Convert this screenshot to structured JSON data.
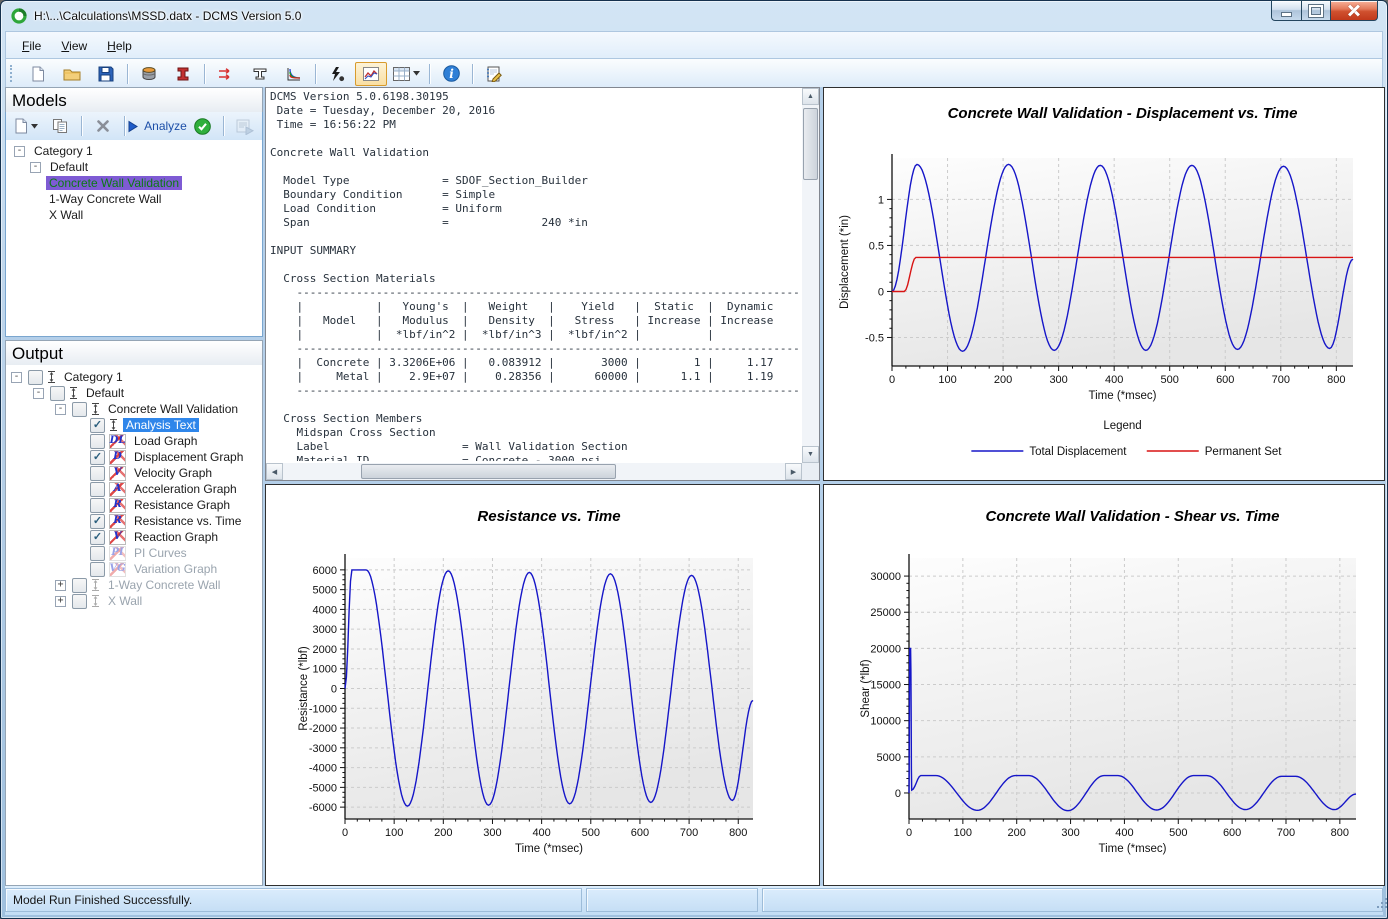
{
  "window": {
    "title": "H:\\...\\Calculations\\MSSD.datx  -  DCMS Version 5.0",
    "controls": [
      "minimize",
      "maximize",
      "close"
    ]
  },
  "menu": {
    "items": [
      "File",
      "View",
      "Help"
    ]
  },
  "toolbar": {
    "buttons": [
      {
        "name": "new-file-button",
        "icon": "page"
      },
      {
        "name": "open-file-button",
        "icon": "folder"
      },
      {
        "name": "save-file-button",
        "icon": "save"
      },
      {
        "sep": true
      },
      {
        "name": "section-builder-button",
        "icon": "drum"
      },
      {
        "name": "beam-designer-button",
        "icon": "ibeam"
      },
      {
        "sep": true
      },
      {
        "name": "loads-button",
        "icon": "loads"
      },
      {
        "name": "section-tool-button",
        "icon": "tsec"
      },
      {
        "name": "pi-curves-button",
        "icon": "pic"
      },
      {
        "sep": true
      },
      {
        "name": "run-analysis-button",
        "icon": "bolt"
      },
      {
        "name": "charts-view-button",
        "icon": "chart",
        "state": "active"
      },
      {
        "name": "table-view-button",
        "icon": "table",
        "caret": true
      },
      {
        "sep": true
      },
      {
        "name": "about-button",
        "icon": "info"
      },
      {
        "sep": true
      },
      {
        "name": "report-button",
        "icon": "report"
      }
    ]
  },
  "models": {
    "header": "Models",
    "selection_bg": "#7e5bd4",
    "selection_fg": "#0c7a14",
    "toolbar": {
      "buttons": [
        {
          "name": "new-model-button",
          "icon": "page",
          "caret": true
        },
        {
          "name": "copy-model-button",
          "icon": "copy"
        },
        {
          "sep": true
        },
        {
          "name": "delete-model-button",
          "icon": "xmark"
        },
        {
          "sep": true
        },
        {
          "name": "analyze-button",
          "icon": "play",
          "label": "Analyze"
        },
        {
          "name": "analyze-status-icon",
          "icon": "checkcircle"
        },
        {
          "sep": true
        },
        {
          "name": "batch-run-button",
          "icon": "runlog",
          "disabled": true
        }
      ]
    },
    "tree": [
      {
        "label": "Category 1",
        "level": 0,
        "expander": "minus"
      },
      {
        "label": "Default",
        "level": 1,
        "expander": "minus"
      },
      {
        "label": "Concrete Wall Validation",
        "level": 2,
        "selected": true
      },
      {
        "label": "1-Way Concrete Wall",
        "level": 2
      },
      {
        "label": "X Wall",
        "level": 2
      }
    ]
  },
  "output": {
    "header": "Output",
    "tree": [
      {
        "label": "Category 1",
        "level": 0,
        "expander": "minus",
        "checked": false,
        "icon": "model"
      },
      {
        "label": "Default",
        "level": 1,
        "expander": "minus",
        "checked": false,
        "icon": "model"
      },
      {
        "label": "Concrete Wall Validation",
        "level": 2,
        "expander": "minus",
        "checked": false,
        "icon": "model"
      },
      {
        "label": "Analysis Text",
        "level": 3,
        "checked": true,
        "icon": "model",
        "selected": true
      },
      {
        "label": "Load Graph",
        "level": 3,
        "checked": false,
        "icon": "DL"
      },
      {
        "label": "Displacement Graph",
        "level": 3,
        "checked": true,
        "icon": "D"
      },
      {
        "label": "Velocity Graph",
        "level": 3,
        "checked": false,
        "icon": "V"
      },
      {
        "label": "Acceleration Graph",
        "level": 3,
        "checked": false,
        "icon": "A"
      },
      {
        "label": "Resistance Graph",
        "level": 3,
        "checked": false,
        "icon": "R"
      },
      {
        "label": "Resistance vs. Time",
        "level": 3,
        "checked": true,
        "icon": "R"
      },
      {
        "label": "Reaction Graph",
        "level": 3,
        "checked": true,
        "icon": "V"
      },
      {
        "label": "PI Curves",
        "level": 3,
        "checked": false,
        "icon": "PI",
        "disabled": true
      },
      {
        "label": "Variation Graph",
        "level": 3,
        "checked": false,
        "icon": "VG",
        "disabled": true
      },
      {
        "label": "1-Way Concrete Wall",
        "level": 2,
        "expander": "plus",
        "checked": false,
        "icon": "model",
        "disabled": true
      },
      {
        "label": "X Wall",
        "level": 2,
        "expander": "plus",
        "checked": false,
        "icon": "model",
        "disabled": true
      }
    ]
  },
  "analysis_text": {
    "lines": [
      "DCMS Version 5.0.6198.30195",
      " Date = Tuesday, December 20, 2016",
      " Time = 16:56:22 PM",
      "",
      "Concrete Wall Validation",
      "",
      "  Model Type              = SDOF_Section_Builder",
      "  Boundary Condition      = Simple",
      "  Load Condition          = Uniform",
      "  Span                    =              240 *in",
      "",
      "INPUT SUMMARY",
      "",
      "  Cross Section Materials",
      "    ------------------------------------------------------------------------------",
      "    |           |   Young's  |   Weight   |    Yield   |  Static  |  Dynamic",
      "    |   Model   |   Modulus  |   Density  |   Stress   | Increase | Increase",
      "    |           |  *lbf/in^2 |  *lbf/in^3 |  *lbf/in^2 |          |",
      "    ------------------------------------------------------------------------------",
      "    |  Concrete | 3.3206E+06 |   0.083912 |       3000 |        1 |     1.17",
      "    |     Metal |    2.9E+07 |    0.28356 |      60000 |      1.1 |     1.19",
      "    ------------------------------------------------------------------------------",
      "",
      "  Cross Section Members",
      "    Midspan Cross Section",
      "    Label                    = Wall Validation Section",
      "    Material ID              = Concrete - 3000 psi"
    ]
  },
  "chart_data": [
    {
      "type": "line",
      "title": "Concrete Wall Validation - Displacement vs. Time",
      "xlabel": "Time (*msec)",
      "ylabel": "Displacement (*in)",
      "xlim": [
        0,
        830
      ],
      "ylim": [
        -0.81,
        1.45
      ],
      "xticks": [
        0,
        100,
        200,
        300,
        400,
        500,
        600,
        700,
        800
      ],
      "yticks": [
        -0.5,
        0,
        0.5,
        1
      ],
      "grid": true,
      "legend": {
        "title": "Legend",
        "entries": [
          {
            "label": "Total Displacement",
            "color": "#1616c8"
          },
          {
            "label": "Permanent Set",
            "color": "#d81414"
          }
        ]
      },
      "series": [
        {
          "name": "Total Displacement",
          "color": "#1616c8",
          "keypoints": [
            [
              0,
              0
            ],
            [
              45,
              1.38
            ],
            [
              127,
              -0.65
            ],
            [
              210,
              1.38
            ],
            [
              292,
              -0.64
            ],
            [
              375,
              1.37
            ],
            [
              457,
              -0.64
            ],
            [
              540,
              1.37
            ],
            [
              622,
              -0.63
            ],
            [
              705,
              1.36
            ],
            [
              788,
              -0.62
            ],
            [
              830,
              0.35
            ]
          ]
        },
        {
          "name": "Permanent Set",
          "color": "#d81414",
          "keypoints": [
            [
              0,
              0
            ],
            [
              22,
              0
            ],
            [
              43,
              0.37
            ],
            [
              830,
              0.37
            ]
          ]
        }
      ]
    },
    {
      "type": "line",
      "title": "Resistance vs. Time",
      "xlabel": "Time (*msec)",
      "ylabel": "Resistance (*lbf)",
      "xlim": [
        0,
        830
      ],
      "ylim": [
        -6600,
        6600
      ],
      "xticks": [
        0,
        100,
        200,
        300,
        400,
        500,
        600,
        700,
        800
      ],
      "yticks": [
        -6000,
        -5000,
        -4000,
        -3000,
        -2000,
        -1000,
        0,
        1000,
        2000,
        3000,
        4000,
        5000,
        6000
      ],
      "grid": true,
      "series": [
        {
          "name": "Resistance",
          "color": "#1616c8",
          "keypoints": [
            [
              0,
              0
            ],
            [
              14,
              6000
            ],
            [
              43,
              6000
            ],
            [
              127,
              -5950
            ],
            [
              210,
              5950
            ],
            [
              292,
              -5900
            ],
            [
              375,
              5870
            ],
            [
              457,
              -5830
            ],
            [
              540,
              5800
            ],
            [
              622,
              -5760
            ],
            [
              705,
              5720
            ],
            [
              788,
              -5660
            ],
            [
              830,
              -600
            ]
          ]
        }
      ]
    },
    {
      "type": "line",
      "title": "Concrete Wall Validation - Shear vs. Time",
      "xlabel": "Time (*msec)",
      "ylabel": "Shear (*lbf)",
      "xlim": [
        0,
        830
      ],
      "ylim": [
        -3600,
        32500
      ],
      "xticks": [
        0,
        100,
        200,
        300,
        400,
        500,
        600,
        700,
        800
      ],
      "yticks": [
        0,
        5000,
        10000,
        15000,
        20000,
        25000,
        30000
      ],
      "grid": true,
      "series": [
        {
          "name": "Shear",
          "color": "#1616c8",
          "keypoints": [
            [
              0,
              0
            ],
            [
              1.5,
              20000
            ],
            [
              3,
              20000
            ],
            [
              5,
              400
            ],
            [
              22,
              2400
            ],
            [
              50,
              2400
            ],
            [
              127,
              -2400
            ],
            [
              197,
              2400
            ],
            [
              223,
              2400
            ],
            [
              295,
              -2450
            ],
            [
              362,
              2400
            ],
            [
              388,
              2400
            ],
            [
              460,
              -2350
            ],
            [
              528,
              2400
            ],
            [
              553,
              2400
            ],
            [
              625,
              -2300
            ],
            [
              692,
              2300
            ],
            [
              718,
              2300
            ],
            [
              790,
              -2300
            ],
            [
              830,
              -150
            ]
          ]
        }
      ]
    }
  ],
  "status": {
    "message": "Model Run Finished Successfully."
  }
}
